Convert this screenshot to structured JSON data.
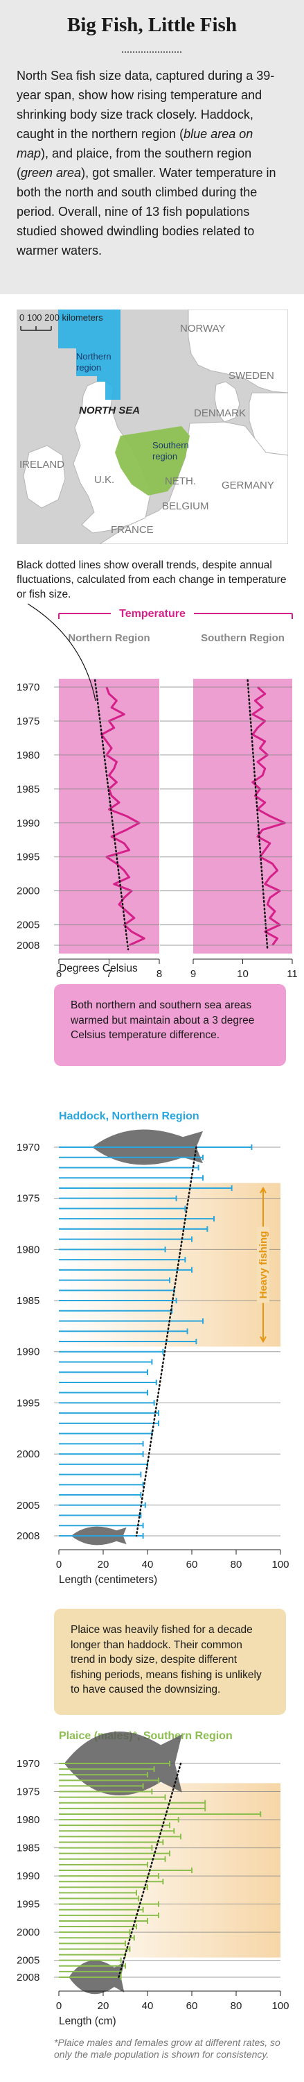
{
  "title": "Big Fish, Little Fish",
  "intro": {
    "p1": "North Sea fish size data, captured during a 39-year span, show how rising temperature and shrinking body size track closely. Haddock, caught in the northern region (",
    "p1_em": "blue area on map",
    "p2": "), and plaice, from the southern region (",
    "p2_em": "green area",
    "p3": "), got smaller. Water temperature in both the north and south climbed during the period. Overall, nine of 13 fish populations studied showed dwindling bodies related to warmer waters."
  },
  "map": {
    "scale_label": "0  100  200 kilometers",
    "labels": {
      "norway": "NORWAY",
      "northern_region": "Northern region",
      "sweden": "SWEDEN",
      "north_sea": "NORTH SEA",
      "denmark": "DENMARK",
      "ireland": "IRELAND",
      "southern_region": "Southern region",
      "uk": "U.K.",
      "neth": "NETH.",
      "germany": "GERMANY",
      "belgium": "BELGIUM",
      "france": "FRANCE"
    },
    "colors": {
      "northern": "#2ab0e6",
      "southern": "#8dc153",
      "land": "#ffffff",
      "sea": "#d2d2d2"
    }
  },
  "map_caption": "Black dotted lines show overall trends, despite annual fluctuations, calculated from each change in temperature or fish size.",
  "notes": {
    "temperature": "Both northern and southern sea areas warmed but maintain about a 3 degree Celsius temperature difference.",
    "fishing": "Plaice was heavily fished for a decade longer than haddock. Their common trend in body size, despite different fishing periods, means fishing is unlikely to have caused the downsizing."
  },
  "footnote": "*Plaice males and females grow at different rates, so only the male population is shown for consistency.",
  "chart_data": [
    {
      "type": "line",
      "title": "Temperature",
      "xlabel": "Degrees Celsius",
      "color": "#d5208a",
      "fill": "#ec9fd0",
      "year_ticks": [
        "1970",
        "1975",
        "1980",
        "1985",
        "1990",
        "1995",
        "2000",
        "2005",
        "2008"
      ],
      "panels": [
        {
          "name": "Northern Region",
          "xlim": [
            6,
            8
          ],
          "xticks": [
            6,
            7,
            8
          ],
          "x": [
            1970,
            1971,
            1972,
            1973,
            1974,
            1975,
            1976,
            1977,
            1978,
            1979,
            1980,
            1981,
            1982,
            1983,
            1984,
            1985,
            1986,
            1987,
            1988,
            1989,
            1990,
            1991,
            1992,
            1993,
            1994,
            1995,
            1996,
            1997,
            1998,
            1999,
            2000,
            2001,
            2002,
            2003,
            2004,
            2005,
            2006,
            2007,
            2008
          ],
          "values": [
            6.95,
            7.0,
            7.15,
            7.05,
            7.3,
            7.0,
            7.1,
            6.85,
            6.95,
            7.05,
            6.95,
            7.15,
            7.1,
            7.0,
            7.15,
            7.0,
            7.05,
            7.2,
            7.0,
            7.35,
            7.6,
            7.35,
            7.05,
            7.3,
            7.4,
            6.95,
            7.15,
            7.3,
            7.4,
            7.1,
            7.45,
            7.3,
            7.2,
            7.35,
            7.5,
            7.3,
            7.45,
            7.7,
            7.4
          ],
          "trend": [
            [
              1970,
              6.72
            ],
            [
              2008,
              7.38
            ]
          ]
        },
        {
          "name": "Southern Region",
          "xlim": [
            9,
            11
          ],
          "xticks": [
            9,
            10,
            11
          ],
          "x": [
            1970,
            1971,
            1972,
            1973,
            1974,
            1975,
            1976,
            1977,
            1978,
            1979,
            1980,
            1981,
            1982,
            1983,
            1984,
            1985,
            1986,
            1987,
            1988,
            1989,
            1990,
            1991,
            1992,
            1993,
            1994,
            1995,
            1996,
            1997,
            1998,
            1999,
            2000,
            2001,
            2002,
            2003,
            2004,
            2005,
            2006,
            2007,
            2008
          ],
          "values": [
            10.3,
            10.45,
            10.25,
            10.4,
            10.2,
            10.45,
            10.3,
            10.2,
            10.45,
            10.35,
            10.5,
            10.3,
            10.45,
            10.4,
            10.2,
            10.35,
            10.25,
            10.45,
            10.3,
            10.55,
            10.85,
            10.4,
            10.3,
            10.55,
            10.45,
            10.35,
            10.6,
            10.7,
            10.55,
            10.45,
            10.75,
            10.55,
            10.5,
            10.65,
            10.55,
            10.75,
            10.45,
            10.7,
            10.6
          ],
          "trend": [
            [
              1970,
              10.1
            ],
            [
              2008,
              10.5
            ]
          ]
        }
      ]
    },
    {
      "type": "bar",
      "title": "Haddock, Northern Region",
      "xlabel": "Length (centimeters)",
      "orientation": "horizontal",
      "color": "#29a6dd",
      "xlim": [
        0,
        100
      ],
      "xticks": [
        0,
        20,
        40,
        60,
        80,
        100
      ],
      "year_ticks": [
        "1970",
        "1975",
        "1980",
        "1985",
        "1990",
        "1995",
        "2000",
        "2005",
        "2008"
      ],
      "annotation": "Heavy fishing",
      "annotation_color": "#e6960f",
      "annotation_years": [
        1974,
        1989
      ],
      "years": [
        1970,
        1971,
        1972,
        1973,
        1974,
        1975,
        1976,
        1977,
        1978,
        1979,
        1980,
        1981,
        1982,
        1983,
        1984,
        1985,
        1986,
        1987,
        1988,
        1989,
        1990,
        1991,
        1992,
        1993,
        1994,
        1995,
        1996,
        1997,
        1998,
        1999,
        2000,
        2001,
        2002,
        2003,
        2004,
        2005,
        2006,
        2007,
        2008
      ],
      "values": [
        87,
        65,
        63,
        65,
        78,
        53,
        57,
        70,
        67,
        60,
        48,
        57,
        60,
        50,
        52,
        53,
        51,
        65,
        58,
        62,
        47,
        42,
        40,
        44,
        40,
        43,
        45,
        45,
        42,
        38,
        38,
        40,
        37,
        38,
        37,
        39,
        37,
        38,
        38
      ],
      "trend": [
        [
          1970,
          62
        ],
        [
          2008,
          35
        ]
      ]
    },
    {
      "type": "bar",
      "title": "Plaice (males)*, Southern Region",
      "xlabel": "Length (cm)",
      "orientation": "horizontal",
      "color": "#8cbe4f",
      "xlim": [
        0,
        100
      ],
      "xticks": [
        0,
        20,
        40,
        60,
        80,
        100
      ],
      "year_ticks": [
        "1970",
        "1975",
        "1980",
        "1985",
        "1990",
        "1995",
        "2000",
        "2005",
        "2008"
      ],
      "annotation_years": [
        1974,
        2004
      ],
      "years": [
        1970,
        1971,
        1972,
        1973,
        1974,
        1975,
        1976,
        1977,
        1978,
        1979,
        1980,
        1981,
        1982,
        1983,
        1984,
        1985,
        1986,
        1987,
        1988,
        1989,
        1990,
        1991,
        1992,
        1993,
        1994,
        1995,
        1996,
        1997,
        1998,
        1999,
        2000,
        2001,
        2002,
        2003,
        2004,
        2005,
        2006,
        2007,
        2008
      ],
      "values": [
        50,
        43,
        40,
        45,
        38,
        42,
        48,
        66,
        66,
        91,
        54,
        50,
        52,
        55,
        47,
        42,
        50,
        48,
        40,
        60,
        45,
        47,
        40,
        35,
        36,
        45,
        38,
        45,
        40,
        35,
        32,
        34,
        30,
        32,
        30,
        28,
        30,
        28,
        28
      ],
      "trend": [
        [
          1970,
          55
        ],
        [
          2008,
          27
        ]
      ]
    }
  ]
}
